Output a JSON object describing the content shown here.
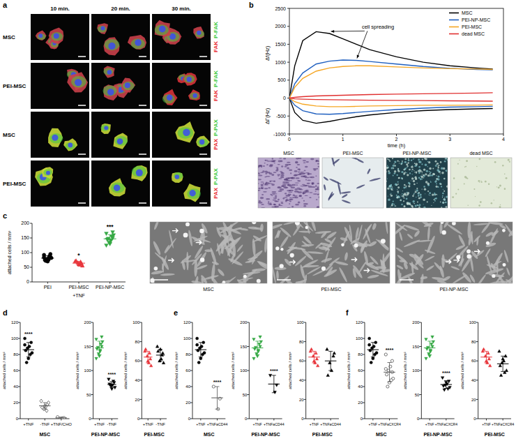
{
  "panel_labels": [
    "a",
    "b",
    "c",
    "d",
    "e",
    "f"
  ],
  "panel_a": {
    "columns": [
      "10 min.",
      "20 min.",
      "30 min."
    ],
    "rows": [
      {
        "label": "MSC",
        "stains": [
          "FAK",
          "P-FAK"
        ]
      },
      {
        "label": "PEI-MSC",
        "stains": [
          "FAK",
          "P-FAK"
        ]
      },
      {
        "label": "MSC",
        "stains": [
          "PAX",
          "P-PAX"
        ]
      },
      {
        "label": "PEI-MSC",
        "stains": [
          "PAX",
          "P-PAX"
        ]
      }
    ],
    "stain_colors": [
      "#e8262b",
      "#3cc83c"
    ]
  },
  "panel_b_photos": [
    "MSC",
    "PEI-MSC",
    "PEI-NP-MSC",
    "dead MSC"
  ],
  "panel_c_photos": [
    "MSC",
    "PEI-MSC",
    "PEI-NP-MSC"
  ],
  "chart_data": [
    {
      "type": "line",
      "x": [
        0,
        0.1,
        0.25,
        0.5,
        0.75,
        1,
        1.25,
        1.5,
        2,
        2.5,
        3,
        3.5,
        3.8
      ],
      "xlim": [
        0,
        4
      ],
      "xticks": [
        0,
        1,
        2,
        3,
        4
      ],
      "ylim": [
        -1000,
        2500
      ],
      "yticks": [
        -1000,
        -500,
        0,
        500,
        1000,
        1500,
        2000,
        2500
      ],
      "xlabel": "time (h)",
      "ylabel": "Δf(Hz)",
      "ylabel_lower": "ΔΓ(Hz)",
      "annotation": "cell spreading",
      "legend": "top-right",
      "series": [
        {
          "name": "MSC",
          "color": "#000000",
          "values": [
            0,
            900,
            1600,
            1850,
            1800,
            1650,
            1500,
            1350,
            1150,
            1000,
            900,
            840,
            810
          ],
          "dgamma_values": [
            0,
            -400,
            -620,
            -700,
            -650,
            -580,
            -520,
            -470,
            -400,
            -350,
            -320,
            -300,
            -290
          ]
        },
        {
          "name": "PEI-NP-MSC",
          "color": "#1f5fbf",
          "values": [
            0,
            400,
            700,
            950,
            1030,
            1060,
            1050,
            1020,
            950,
            880,
            830,
            800,
            790
          ],
          "dgamma_values": [
            0,
            -200,
            -350,
            -440,
            -450,
            -430,
            -400,
            -370,
            -320,
            -280,
            -250,
            -240,
            -230
          ]
        },
        {
          "name": "PEI-MSC",
          "color": "#f5a623",
          "values": [
            0,
            300,
            550,
            750,
            840,
            880,
            900,
            900,
            870,
            840,
            820,
            810,
            800
          ],
          "dgamma_values": [
            0,
            -100,
            -170,
            -220,
            -240,
            -240,
            -230,
            -220,
            -210,
            -200,
            -200,
            -195,
            -190
          ]
        },
        {
          "name": "dead MSC",
          "color": "#e03030",
          "values": [
            0,
            20,
            40,
            60,
            70,
            80,
            90,
            100,
            110,
            120,
            130,
            140,
            150
          ],
          "dgamma_values": [
            0,
            -20,
            -30,
            -40,
            -45,
            -50,
            -55,
            -60,
            -65,
            -70,
            -75,
            -80,
            -85
          ]
        }
      ]
    },
    {
      "type": "dot",
      "categories": [
        "PEI",
        "PEI-MSC",
        "PEI-NP-MSC"
      ],
      "group_label": "+TNF",
      "ylabel": "attached cells / mm²",
      "ylim": [
        0,
        200
      ],
      "yticks": [
        0,
        50,
        100,
        150,
        200
      ],
      "colors": [
        "#000000",
        "#e8373d",
        "#35a844"
      ],
      "markers": [
        "circle",
        "triangle",
        "triangle-down"
      ],
      "points": [
        [
          92,
          85,
          80,
          78,
          75,
          82,
          88,
          70,
          72,
          84,
          95,
          76
        ],
        [
          70,
          62,
          58,
          65,
          72,
          55,
          68,
          60
        ],
        [
          165,
          150,
          140,
          135,
          145,
          160,
          155,
          130,
          148,
          125,
          170,
          142
        ]
      ],
      "mean": [
        81,
        64,
        147
      ],
      "sd": [
        8,
        6,
        14
      ],
      "annotations": [
        null,
        "*",
        "***"
      ]
    },
    {
      "type": "dot",
      "title": "MSC",
      "categories": [
        "+TNF",
        "-TNF",
        "+TNF/CHO"
      ],
      "ylabel": "attached cells / mm²",
      "ylim": [
        0,
        120
      ],
      "yticks": [
        0,
        20,
        40,
        60,
        80,
        100,
        120
      ],
      "colors": [
        "#000000",
        "#555555",
        "#555555"
      ],
      "markers": [
        "circle",
        "diamond-open",
        "circle-open"
      ],
      "points": [
        [
          100,
          95,
          90,
          88,
          85,
          82,
          80,
          75,
          70,
          92
        ],
        [
          22,
          18,
          15,
          12,
          14,
          20,
          10,
          16
        ],
        [
          2,
          1,
          0.5
        ]
      ],
      "mean": [
        86,
        16,
        1
      ],
      "sd": [
        9,
        4,
        1
      ],
      "annotations": [
        "****",
        null,
        null
      ]
    },
    {
      "type": "dot",
      "title": "PEI-NP-MSC",
      "categories": [
        "+TNF",
        "-TNF"
      ],
      "ylabel": "attached cells / mm²",
      "ylim": [
        0,
        200
      ],
      "yticks": [
        0,
        50,
        100,
        150,
        200
      ],
      "colors": [
        "#35a844",
        "#000000"
      ],
      "markers": [
        "triangle-down",
        "triangle-down"
      ],
      "points": [
        [
          165,
          150,
          140,
          135,
          145,
          160,
          155,
          130,
          148,
          125,
          170,
          142
        ],
        [
          82,
          75,
          70,
          68,
          72,
          65,
          78,
          62,
          70
        ]
      ],
      "mean": [
        147,
        71
      ],
      "sd": [
        14,
        6
      ],
      "annotations": [
        null,
        "****"
      ]
    },
    {
      "type": "dot",
      "title": "PEI-MSC",
      "categories": [
        "+TNF",
        "-TNF"
      ],
      "ylabel": "attached cells / mm²",
      "ylim": [
        0,
        100
      ],
      "yticks": [
        0,
        20,
        40,
        60,
        80,
        100
      ],
      "colors": [
        "#e8373d",
        "#000000"
      ],
      "markers": [
        "triangle",
        "triangle"
      ],
      "points": [
        [
          70,
          62,
          58,
          65,
          72,
          55,
          68,
          60
        ],
        [
          75,
          68,
          62,
          60,
          70,
          58,
          66,
          72
        ]
      ],
      "mean": [
        64,
        66
      ],
      "sd": [
        6,
        6
      ],
      "annotations": [
        null,
        null
      ]
    },
    {
      "type": "dot",
      "title": "MSC",
      "categories": [
        "+TNF",
        "+TNFaCD44"
      ],
      "ylabel": "attached cells / mm²",
      "ylim": [
        0,
        120
      ],
      "yticks": [
        0,
        20,
        40,
        60,
        80,
        100,
        120
      ],
      "colors": [
        "#000000",
        "#555555"
      ],
      "markers": [
        "circle",
        "circle-open"
      ],
      "points": [
        [
          100,
          95,
          90,
          88,
          85,
          82,
          80,
          75,
          70,
          92
        ],
        [
          40,
          25,
          12
        ]
      ],
      "mean": [
        86,
        26
      ],
      "sd": [
        9,
        14
      ],
      "annotations": [
        null,
        "****"
      ]
    },
    {
      "type": "dot",
      "title": "PEI-NP-MSC",
      "categories": [
        "+TNF",
        "+TNFaCD44"
      ],
      "ylabel": "attached cells / mm²",
      "ylim": [
        0,
        200
      ],
      "yticks": [
        0,
        50,
        100,
        150,
        200
      ],
      "colors": [
        "#35a844",
        "#000000"
      ],
      "markers": [
        "triangle-down",
        "triangle-down"
      ],
      "points": [
        [
          165,
          150,
          140,
          135,
          145,
          160,
          155,
          130,
          148,
          125,
          170,
          142
        ],
        [
          90,
          70,
          55
        ]
      ],
      "mean": [
        147,
        72
      ],
      "sd": [
        14,
        18
      ],
      "annotations": [
        null,
        "****"
      ]
    },
    {
      "type": "dot",
      "title": "PEI-MSC",
      "categories": [
        "+TNF",
        "+TNFaCD44"
      ],
      "ylabel": "attached cells / mm²",
      "ylim": [
        0,
        100
      ],
      "yticks": [
        0,
        20,
        40,
        60,
        80,
        100
      ],
      "colors": [
        "#e8373d",
        "#000000"
      ],
      "markers": [
        "triangle",
        "triangle"
      ],
      "points": [
        [
          70,
          62,
          58,
          65,
          72,
          55,
          68,
          60
        ],
        [
          72,
          65,
          50,
          58,
          45,
          68
        ]
      ],
      "mean": [
        64,
        60
      ],
      "sd": [
        6,
        10
      ],
      "annotations": [
        null,
        null
      ]
    },
    {
      "type": "dot",
      "title": "MSC",
      "categories": [
        "+TNF",
        "+TNFaCXCR4"
      ],
      "ylabel": "attached cells / mm²",
      "ylim": [
        0,
        120
      ],
      "yticks": [
        0,
        20,
        40,
        60,
        80,
        100,
        120
      ],
      "colors": [
        "#000000",
        "#555555"
      ],
      "markers": [
        "circle",
        "circle-open"
      ],
      "points": [
        [
          100,
          95,
          90,
          88,
          85,
          82,
          80,
          75,
          70,
          92
        ],
        [
          80,
          72,
          65,
          60,
          55,
          50,
          48,
          45,
          40,
          62,
          58
        ]
      ],
      "mean": [
        86,
        58
      ],
      "sd": [
        9,
        12
      ],
      "annotations": [
        null,
        "****"
      ]
    },
    {
      "type": "dot",
      "title": "PEI-NP-MSC",
      "categories": [
        "+TNF",
        "+TNFaCXCR4"
      ],
      "ylabel": "attached cells / mm²",
      "ylim": [
        0,
        200
      ],
      "yticks": [
        0,
        50,
        100,
        150,
        200
      ],
      "colors": [
        "#35a844",
        "#000000"
      ],
      "markers": [
        "triangle-down",
        "triangle-down"
      ],
      "points": [
        [
          165,
          150,
          140,
          135,
          145,
          160,
          155,
          130,
          148,
          125,
          170,
          142
        ],
        [
          85,
          78,
          72,
          70,
          68,
          65,
          62,
          75,
          60
        ]
      ],
      "mean": [
        147,
        71
      ],
      "sd": [
        14,
        8
      ],
      "annotations": [
        null,
        "****"
      ]
    },
    {
      "type": "dot",
      "title": "PEI-MSC",
      "categories": [
        "+TNF",
        "+TNFaCXCR4"
      ],
      "ylabel": "attached cells / mm²",
      "ylim": [
        0,
        100
      ],
      "yticks": [
        0,
        20,
        40,
        60,
        80,
        100
      ],
      "colors": [
        "#e8373d",
        "#000000"
      ],
      "markers": [
        "triangle",
        "triangle"
      ],
      "points": [
        [
          70,
          62,
          58,
          65,
          72,
          55,
          68,
          60
        ],
        [
          70,
          65,
          60,
          58,
          55,
          50,
          48,
          62,
          45
        ]
      ],
      "mean": [
        64,
        57
      ],
      "sd": [
        6,
        8
      ],
      "annotations": [
        null,
        null
      ]
    }
  ]
}
